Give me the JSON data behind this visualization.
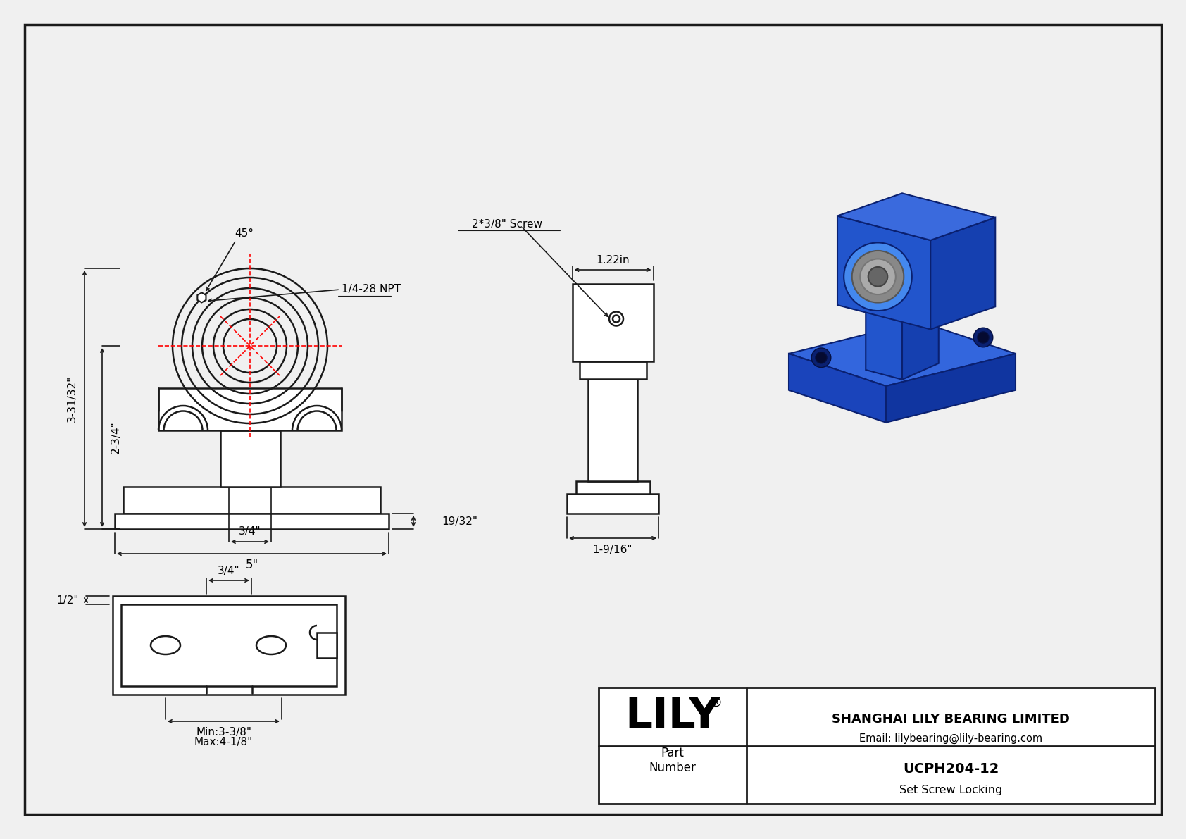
{
  "bg_color": "#f0f0f0",
  "line_color": "#1a1a1a",
  "red_color": "#ff0000",
  "part_number": "UCPH204-12",
  "locking": "Set Screw Locking",
  "company": "SHANGHAI LILY BEARING LIMITED",
  "email": "Email: lilybearing@lily-bearing.com",
  "dims": {
    "height_total": "3-31/32\"",
    "height_center": "2-3/4\"",
    "width_total": "5\"",
    "slot_width": "3/4\"",
    "side_height": "19/32\"",
    "side_width": "1-9/16\"",
    "top_width": "1.22in",
    "angle": "45°",
    "screw": "1/4-28 NPT",
    "screw2": "2*3/8\" Screw",
    "bot_half": "1/2\"",
    "bot_3_4": "3/4\"",
    "bot_min": "Min:3-3/8\"",
    "bot_max": "Max:4-1/8\""
  }
}
